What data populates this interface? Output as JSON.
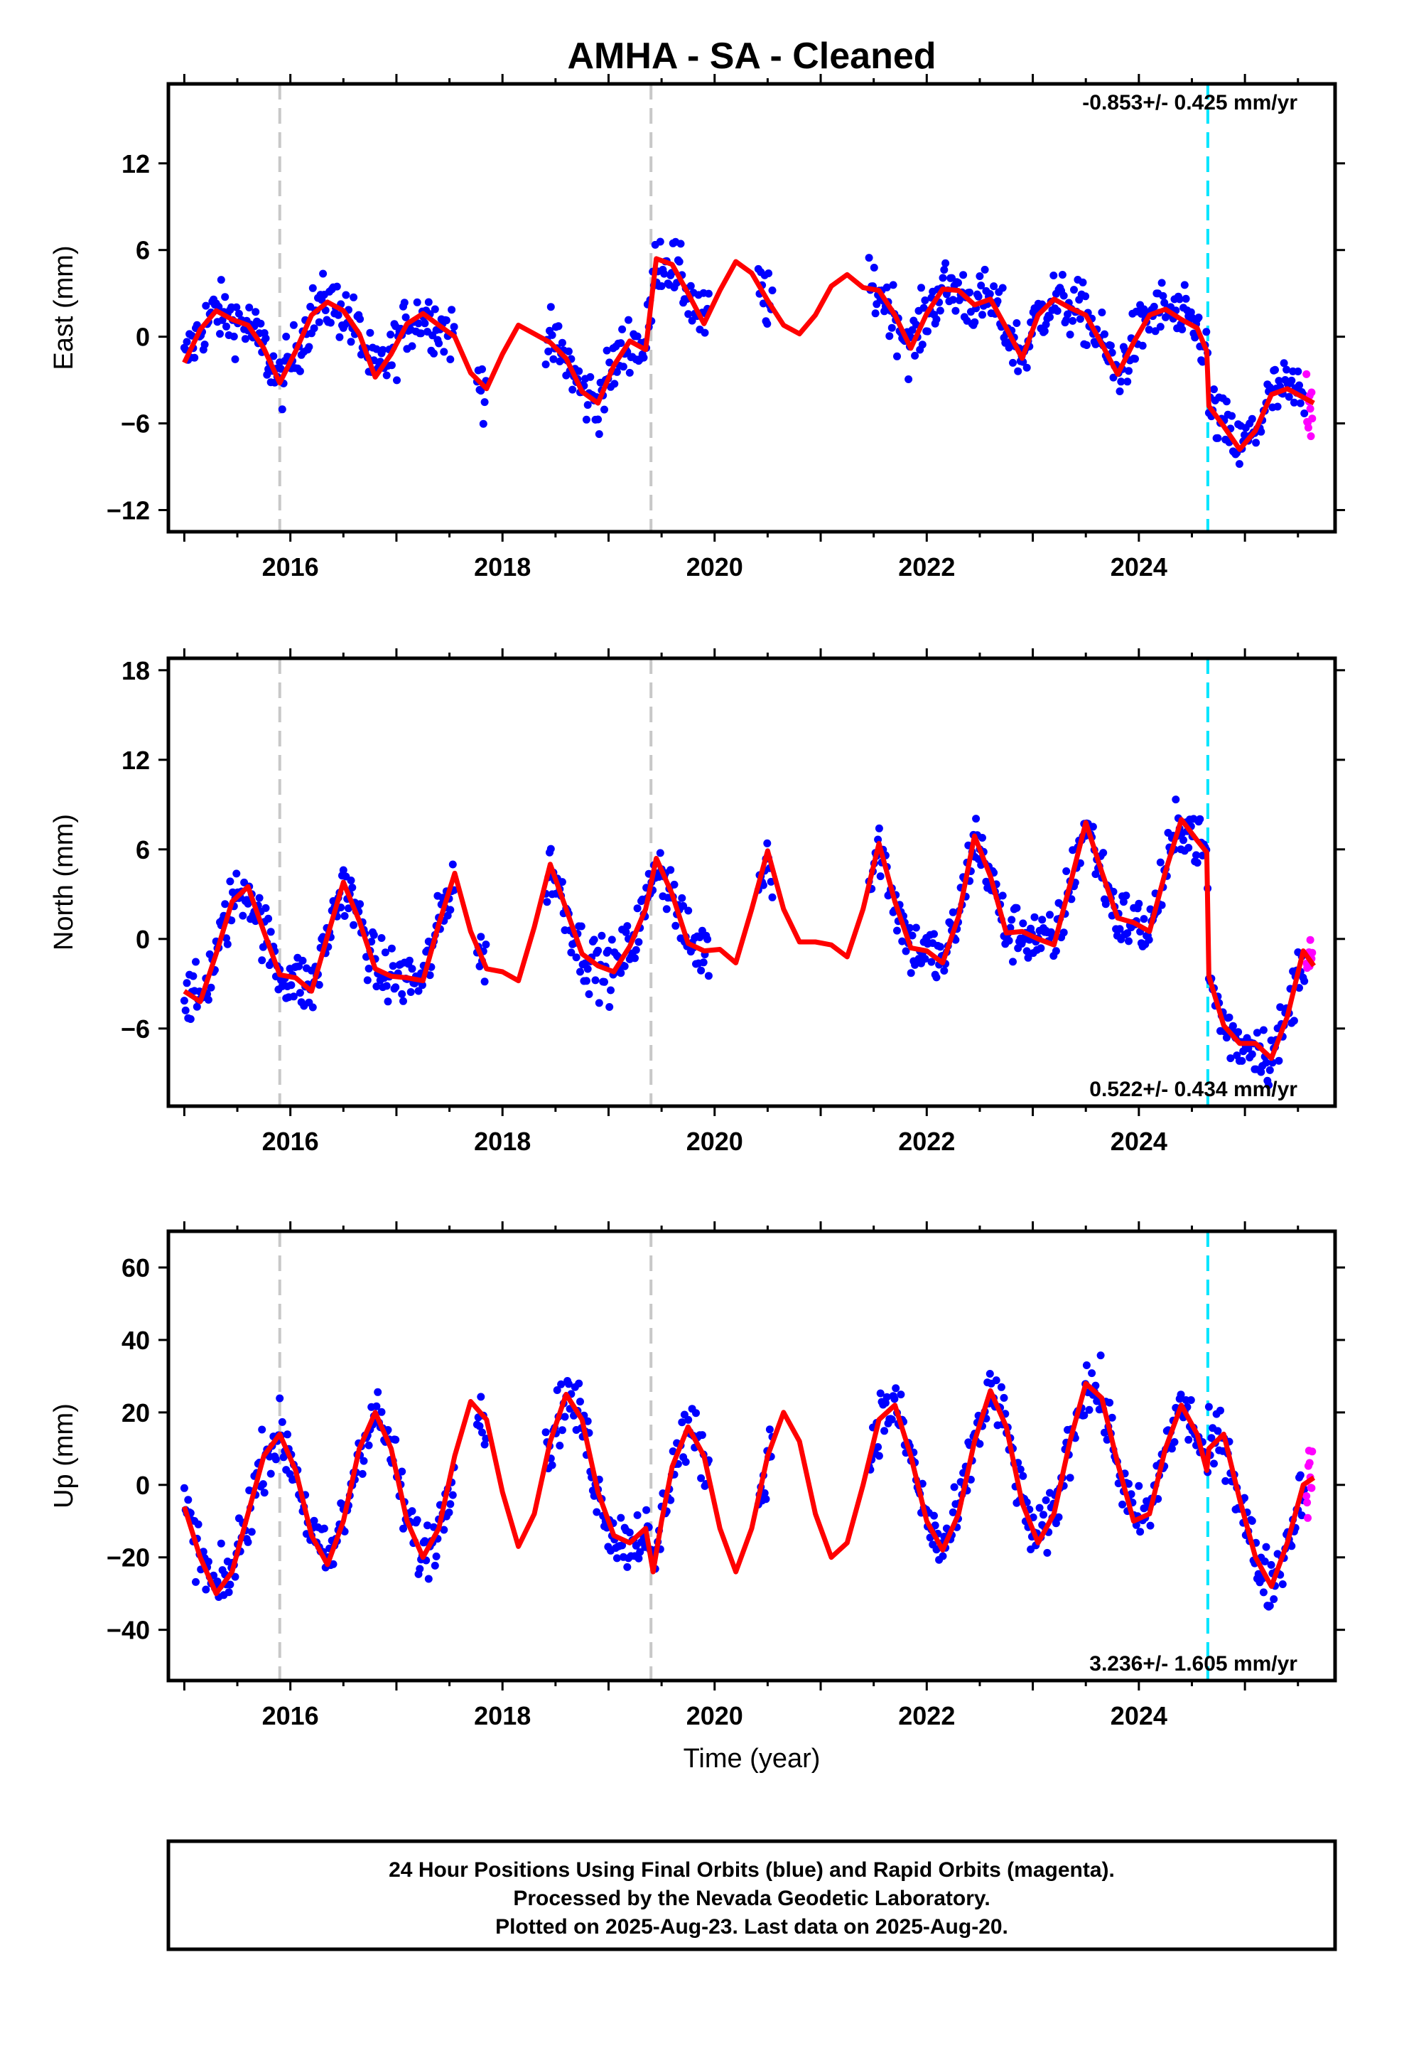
{
  "title": "AMHA  - SA - Cleaned",
  "xlabel": "Time (year)",
  "footer": {
    "line1": "24 Hour Positions Using Final Orbits (blue) and Rapid Orbits (magenta).",
    "line2": "Processed by the Nevada Geodetic Laboratory.",
    "line3": "Plotted on 2025-Aug-23. Last data on 2025-Aug-20."
  },
  "colors": {
    "final_points": "#0000ff",
    "rapid_points": "#ff00ff",
    "model": "#ff0000",
    "equipment_change": "#c8c8c8",
    "earthquake": "#00e5ff"
  },
  "chart_data": [
    {
      "type": "scatter",
      "component": "East",
      "ylabel": "East (mm)",
      "rate_text": "-0.853+/- 0.425 mm/yr",
      "rate_position": "top-right",
      "xlim": [
        2014.85,
        2025.85
      ],
      "ylim": [
        -13.5,
        17.5
      ],
      "xticks": [
        2016,
        2018,
        2020,
        2022,
        2024
      ],
      "yticks": [
        -12,
        -6,
        0,
        6,
        12
      ],
      "x_tick_labels": [
        "2016",
        "2018",
        "2020",
        "2022",
        "2024"
      ],
      "y_tick_labels": [
        "−12",
        "−6",
        "0",
        "6",
        "12"
      ],
      "steps_equipment": [
        2015.9,
        2019.4
      ],
      "steps_earthquake": [
        2024.65
      ],
      "model": {
        "x": [
          2015.0,
          2015.15,
          2015.3,
          2015.45,
          2015.6,
          2015.75,
          2015.9,
          2016.05,
          2016.2,
          2016.35,
          2016.5,
          2016.65,
          2016.8,
          2016.95,
          2017.1,
          2017.25,
          2017.4,
          2017.55,
          2017.7,
          2017.85,
          2018.0,
          2018.15,
          2018.3,
          2018.45,
          2018.6,
          2018.75,
          2018.9,
          2019.05,
          2019.2,
          2019.35,
          2019.45,
          2019.6,
          2019.75,
          2019.9,
          2020.05,
          2020.2,
          2020.35,
          2020.5,
          2020.65,
          2020.8,
          2020.95,
          2021.1,
          2021.25,
          2021.4,
          2021.55,
          2021.7,
          2021.85,
          2022.0,
          2022.15,
          2022.3,
          2022.45,
          2022.6,
          2022.75,
          2022.9,
          2023.05,
          2023.2,
          2023.35,
          2023.5,
          2023.65,
          2023.8,
          2023.95,
          2024.1,
          2024.25,
          2024.4,
          2024.55,
          2024.64,
          2024.66,
          2024.8,
          2024.95,
          2025.1,
          2025.25,
          2025.4,
          2025.55,
          2025.65
        ],
        "y": [
          -1.8,
          0.5,
          1.8,
          1.2,
          0.8,
          -0.8,
          -3.2,
          -1.0,
          1.5,
          2.4,
          1.8,
          0.2,
          -2.8,
          -1.2,
          0.9,
          1.6,
          0.8,
          0.0,
          -2.5,
          -3.6,
          -1.2,
          0.8,
          0.2,
          -0.4,
          -1.5,
          -3.8,
          -4.6,
          -2.0,
          -0.3,
          -0.9,
          5.4,
          5.0,
          3.0,
          0.9,
          3.2,
          5.2,
          4.4,
          2.5,
          0.8,
          0.2,
          1.5,
          3.5,
          4.3,
          3.4,
          3.2,
          1.5,
          -0.8,
          1.6,
          3.3,
          3.2,
          2.2,
          2.6,
          0.6,
          -1.5,
          1.5,
          2.6,
          2.0,
          1.5,
          -0.5,
          -2.6,
          -0.4,
          1.5,
          1.9,
          1.2,
          0.6,
          -1.0,
          -4.8,
          -6.2,
          -7.8,
          -6.5,
          -4.0,
          -3.6,
          -4.2,
          -4.6
        ]
      }
    },
    {
      "type": "scatter",
      "component": "North",
      "ylabel": "North (mm)",
      "rate_text": "0.522+/- 0.434 mm/yr",
      "rate_position": "bottom-right",
      "xlim": [
        2014.85,
        2025.85
      ],
      "ylim": [
        -11.2,
        18.8
      ],
      "xticks": [
        2016,
        2018,
        2020,
        2022,
        2024
      ],
      "yticks": [
        -6,
        0,
        6,
        12,
        18
      ],
      "x_tick_labels": [
        "2016",
        "2018",
        "2020",
        "2022",
        "2024"
      ],
      "y_tick_labels": [
        "−6",
        "0",
        "6",
        "12",
        "18"
      ],
      "steps_equipment": [
        2015.9,
        2019.4
      ],
      "steps_earthquake": [
        2024.65
      ],
      "model": {
        "x": [
          2015.0,
          2015.15,
          2015.3,
          2015.45,
          2015.6,
          2015.75,
          2015.9,
          2016.05,
          2016.2,
          2016.35,
          2016.5,
          2016.65,
          2016.8,
          2016.95,
          2017.1,
          2017.25,
          2017.4,
          2017.55,
          2017.7,
          2017.85,
          2018.0,
          2018.15,
          2018.3,
          2018.45,
          2018.6,
          2018.75,
          2018.9,
          2019.05,
          2019.2,
          2019.35,
          2019.45,
          2019.6,
          2019.75,
          2019.9,
          2020.05,
          2020.2,
          2020.35,
          2020.5,
          2020.65,
          2020.8,
          2020.95,
          2021.1,
          2021.25,
          2021.4,
          2021.55,
          2021.7,
          2021.85,
          2022.0,
          2022.15,
          2022.3,
          2022.45,
          2022.6,
          2022.75,
          2022.9,
          2023.05,
          2023.2,
          2023.35,
          2023.5,
          2023.65,
          2023.8,
          2023.95,
          2024.1,
          2024.25,
          2024.4,
          2024.55,
          2024.64,
          2024.66,
          2024.8,
          2024.95,
          2025.1,
          2025.25,
          2025.4,
          2025.55,
          2025.65
        ],
        "y": [
          -3.5,
          -4.2,
          -1.0,
          2.5,
          3.5,
          0.5,
          -2.4,
          -2.6,
          -3.5,
          0.2,
          3.8,
          1.2,
          -2.0,
          -2.5,
          -2.6,
          -2.8,
          1.0,
          4.4,
          0.5,
          -2.0,
          -2.2,
          -2.8,
          0.8,
          5.0,
          2.0,
          -1.0,
          -1.8,
          -2.2,
          -0.5,
          2.0,
          5.4,
          3.0,
          -0.3,
          -0.8,
          -0.7,
          -1.6,
          2.0,
          5.9,
          2.0,
          -0.2,
          -0.2,
          -0.4,
          -1.2,
          2.0,
          6.4,
          2.5,
          -0.6,
          -0.8,
          -1.6,
          1.5,
          6.9,
          4.2,
          0.4,
          0.5,
          0.0,
          -0.4,
          3.6,
          7.8,
          4.5,
          1.4,
          1.1,
          0.5,
          4.5,
          8.0,
          6.6,
          5.8,
          -2.5,
          -5.8,
          -7.0,
          -7.0,
          -8.0,
          -5.2,
          -0.8,
          -1.8
        ]
      }
    },
    {
      "type": "scatter",
      "component": "Up",
      "ylabel": "Up (mm)",
      "rate_text": "3.236+/- 1.605 mm/yr",
      "rate_position": "bottom-right",
      "xlim": [
        2014.85,
        2025.85
      ],
      "ylim": [
        -54,
        70
      ],
      "xticks": [
        2016,
        2018,
        2020,
        2022,
        2024
      ],
      "yticks": [
        -40,
        -20,
        0,
        20,
        40,
        60
      ],
      "x_tick_labels": [
        "2016",
        "2018",
        "2020",
        "2022",
        "2024"
      ],
      "y_tick_labels": [
        "−40",
        "−20",
        "0",
        "20",
        "40",
        "60"
      ],
      "steps_equipment": [
        2015.9,
        2019.4
      ],
      "steps_earthquake": [
        2024.65
      ],
      "model": {
        "x": [
          2015.0,
          2015.15,
          2015.3,
          2015.45,
          2015.6,
          2015.75,
          2015.9,
          2016.05,
          2016.2,
          2016.35,
          2016.5,
          2016.65,
          2016.8,
          2016.95,
          2017.1,
          2017.25,
          2017.4,
          2017.55,
          2017.7,
          2017.85,
          2018.0,
          2018.15,
          2018.3,
          2018.45,
          2018.6,
          2018.75,
          2018.9,
          2019.05,
          2019.2,
          2019.35,
          2019.42,
          2019.5,
          2019.6,
          2019.75,
          2019.9,
          2020.05,
          2020.2,
          2020.35,
          2020.5,
          2020.65,
          2020.8,
          2020.95,
          2021.1,
          2021.25,
          2021.4,
          2021.55,
          2021.7,
          2021.85,
          2022.0,
          2022.15,
          2022.3,
          2022.45,
          2022.6,
          2022.75,
          2022.9,
          2023.05,
          2023.2,
          2023.35,
          2023.5,
          2023.65,
          2023.8,
          2023.95,
          2024.1,
          2024.25,
          2024.4,
          2024.55,
          2024.64,
          2024.66,
          2024.8,
          2024.95,
          2025.1,
          2025.25,
          2025.4,
          2025.55,
          2025.65
        ],
        "y": [
          -6,
          -20,
          -30,
          -24,
          -8,
          8,
          14,
          4,
          -14,
          -22,
          -10,
          10,
          20,
          10,
          -10,
          -20,
          -12,
          8,
          23,
          18,
          -2,
          -17,
          -8,
          12,
          25,
          18,
          -2,
          -14,
          -16,
          -12,
          -24,
          -10,
          5,
          16,
          8,
          -12,
          -24,
          -12,
          8,
          20,
          12,
          -8,
          -20,
          -16,
          0,
          18,
          22,
          8,
          -10,
          -18,
          -8,
          12,
          26,
          16,
          -5,
          -16,
          -8,
          12,
          28,
          24,
          6,
          -10,
          -8,
          10,
          22,
          14,
          4,
          10,
          14,
          -4,
          -20,
          -28,
          -16,
          0,
          2
        ]
      }
    }
  ]
}
